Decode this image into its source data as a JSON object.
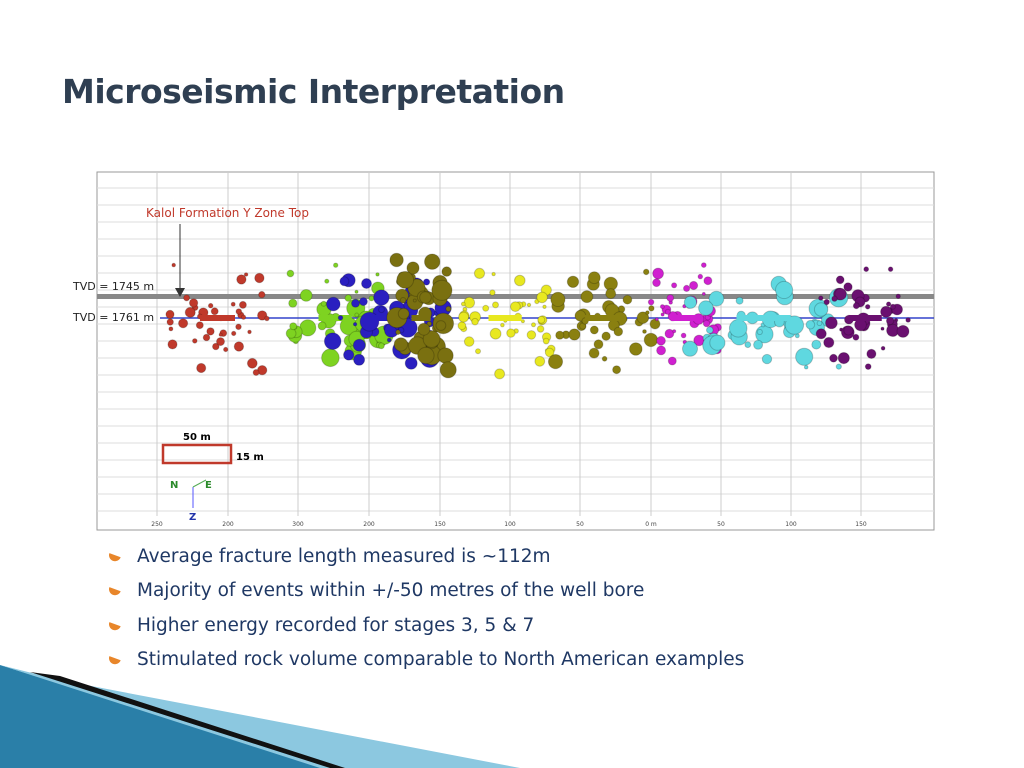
{
  "title": "Microseismic Interpretation",
  "figure": {
    "annotation": "Kalol Formation Y Zone Top",
    "tvd_top": "TVD = 1745 m",
    "tvd_bottom": "TVD = 1761 m",
    "scale_width": "50 m",
    "scale_height": "15 m",
    "compass": [
      "N",
      "E",
      "Z"
    ],
    "x_axis_labels": [
      "250",
      "200",
      "300",
      "200",
      "150",
      "100",
      "50",
      "0 m",
      "50",
      "100",
      "150"
    ]
  },
  "bullets": [
    "Average fracture length measured is ~112m",
    "Majority of events within +/-50 metres of the well bore",
    "Higher energy recorded for stages 3, 5 & 7",
    "Stimulated rock volume comparable to North American examples"
  ]
}
